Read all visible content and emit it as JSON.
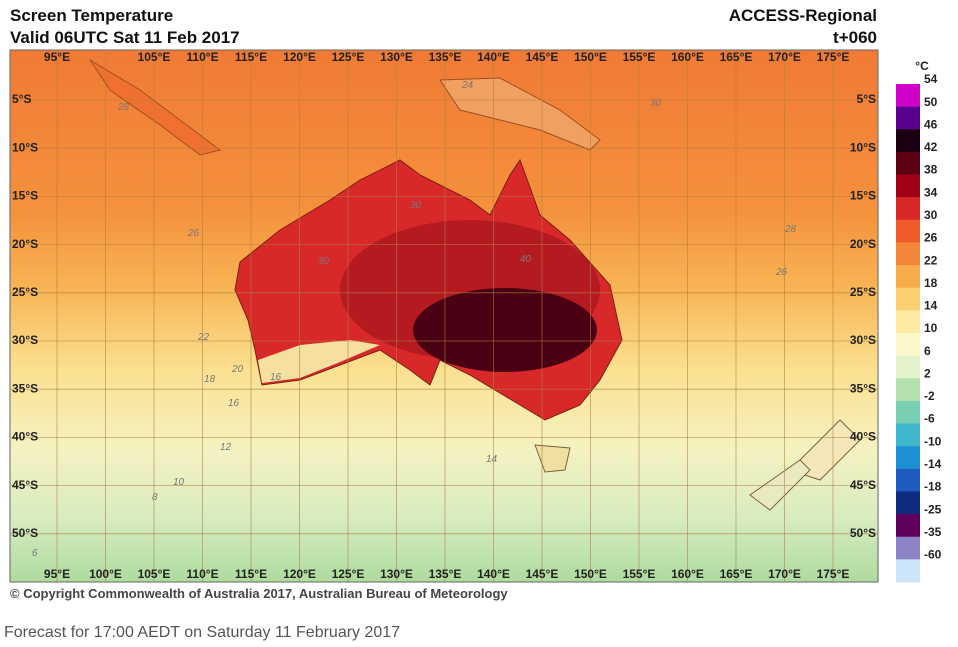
{
  "header": {
    "title": "Screen Temperature",
    "valid": "Valid 06UTC Sat 11 Feb 2017",
    "model": "ACCESS-Regional",
    "lead": "t+060"
  },
  "map": {
    "top_lon_labels": [
      "95°E",
      "105°E",
      "110°E",
      "115°E",
      "120°E",
      "125°E",
      "130°E",
      "135°E",
      "140°E",
      "145°E",
      "150°E",
      "155°E",
      "160°E",
      "165°E",
      "170°E",
      "175°E"
    ],
    "bottom_lon_labels": [
      "95°E",
      "100°E",
      "105°E",
      "110°E",
      "115°E",
      "120°E",
      "125°E",
      "130°E",
      "135°E",
      "140°E",
      "145°E",
      "150°E",
      "155°E",
      "160°E",
      "165°E",
      "170°E",
      "175°E"
    ],
    "lat_labels": [
      "5°S",
      "10°S",
      "15°S",
      "20°S",
      "25°S",
      "30°S",
      "35°S",
      "40°S",
      "45°S",
      "50°S"
    ],
    "contour_labels": [
      "24",
      "28",
      "30",
      "30",
      "26",
      "30",
      "40",
      "26",
      "28",
      "22",
      "20",
      "18",
      "16",
      "16",
      "12",
      "14",
      "10",
      "8",
      "6"
    ]
  },
  "legend": {
    "unit": "°C",
    "items": [
      {
        "label": "54",
        "color": "#d000c8"
      },
      {
        "label": "50",
        "color": "#5a0090"
      },
      {
        "label": "46",
        "color": "#1a0010"
      },
      {
        "label": "42",
        "color": "#5c0014"
      },
      {
        "label": "38",
        "color": "#a00018"
      },
      {
        "label": "34",
        "color": "#d82828"
      },
      {
        "label": "30",
        "color": "#ee5a2a"
      },
      {
        "label": "26",
        "color": "#f4863a"
      },
      {
        "label": "22",
        "color": "#f8ad4c"
      },
      {
        "label": "18",
        "color": "#fbd070"
      },
      {
        "label": "14",
        "color": "#fde9a0"
      },
      {
        "label": "10",
        "color": "#fcf7c8"
      },
      {
        "label": "6",
        "color": "#e4f2cc"
      },
      {
        "label": "2",
        "color": "#b4e0ae"
      },
      {
        "label": "-2",
        "color": "#78cfb4"
      },
      {
        "label": "-6",
        "color": "#40b6cc"
      },
      {
        "label": "-10",
        "color": "#2090d4"
      },
      {
        "label": "-14",
        "color": "#205cc0"
      },
      {
        "label": "-18",
        "color": "#102c80"
      },
      {
        "label": "-25",
        "color": "#60005c"
      },
      {
        "label": "-35",
        "color": "#8c84c4"
      },
      {
        "label": "-60",
        "color": "#cce4f8"
      }
    ]
  },
  "copyright": "© Copyright Commonwealth of Australia 2017, Australian Bureau of Meteorology",
  "caption": "Forecast for 17:00 AEDT on Saturday 11 February 2017"
}
